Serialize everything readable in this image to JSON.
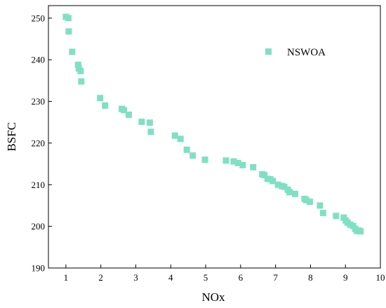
{
  "chart_data": {
    "type": "scatter",
    "xlabel": "NOx",
    "ylabel": "BSFC",
    "xlim": [
      0.5,
      10
    ],
    "ylim": [
      190,
      253
    ],
    "xticks": [
      1,
      2,
      3,
      4,
      5,
      6,
      7,
      8,
      9,
      10
    ],
    "yticks": [
      190,
      200,
      210,
      220,
      230,
      240,
      250
    ],
    "grid": false,
    "legend_position": "top-right",
    "series": [
      {
        "name": "NSWOA",
        "color": "#7fe0c4",
        "marker": "square",
        "points": [
          [
            1.0,
            250.3
          ],
          [
            1.07,
            250.0
          ],
          [
            1.08,
            246.8
          ],
          [
            1.18,
            241.9
          ],
          [
            1.35,
            238.8
          ],
          [
            1.37,
            237.9
          ],
          [
            1.42,
            237.3
          ],
          [
            1.44,
            234.8
          ],
          [
            1.98,
            230.8
          ],
          [
            2.12,
            229.0
          ],
          [
            2.6,
            228.2
          ],
          [
            2.66,
            227.9
          ],
          [
            2.8,
            226.8
          ],
          [
            3.17,
            225.1
          ],
          [
            3.4,
            224.9
          ],
          [
            3.43,
            222.7
          ],
          [
            4.12,
            221.8
          ],
          [
            4.28,
            221.0
          ],
          [
            4.46,
            218.4
          ],
          [
            4.63,
            217.0
          ],
          [
            4.98,
            216.0
          ],
          [
            5.58,
            215.8
          ],
          [
            5.8,
            215.6
          ],
          [
            5.93,
            215.2
          ],
          [
            6.06,
            214.7
          ],
          [
            6.36,
            214.2
          ],
          [
            6.62,
            212.5
          ],
          [
            6.68,
            212.3
          ],
          [
            6.77,
            211.4
          ],
          [
            6.85,
            211.3
          ],
          [
            6.92,
            210.9
          ],
          [
            7.07,
            210.0
          ],
          [
            7.18,
            209.7
          ],
          [
            7.25,
            209.5
          ],
          [
            7.35,
            208.8
          ],
          [
            7.4,
            208.2
          ],
          [
            7.56,
            207.8
          ],
          [
            7.83,
            206.6
          ],
          [
            7.88,
            206.3
          ],
          [
            7.98,
            205.9
          ],
          [
            8.27,
            205.0
          ],
          [
            8.36,
            203.2
          ],
          [
            8.73,
            202.5
          ],
          [
            8.95,
            202.1
          ],
          [
            9.01,
            201.4
          ],
          [
            9.06,
            200.9
          ],
          [
            9.14,
            200.4
          ],
          [
            9.22,
            200.1
          ],
          [
            9.28,
            199.4
          ],
          [
            9.33,
            198.9
          ],
          [
            9.38,
            199.0
          ],
          [
            9.43,
            198.8
          ]
        ]
      }
    ]
  }
}
